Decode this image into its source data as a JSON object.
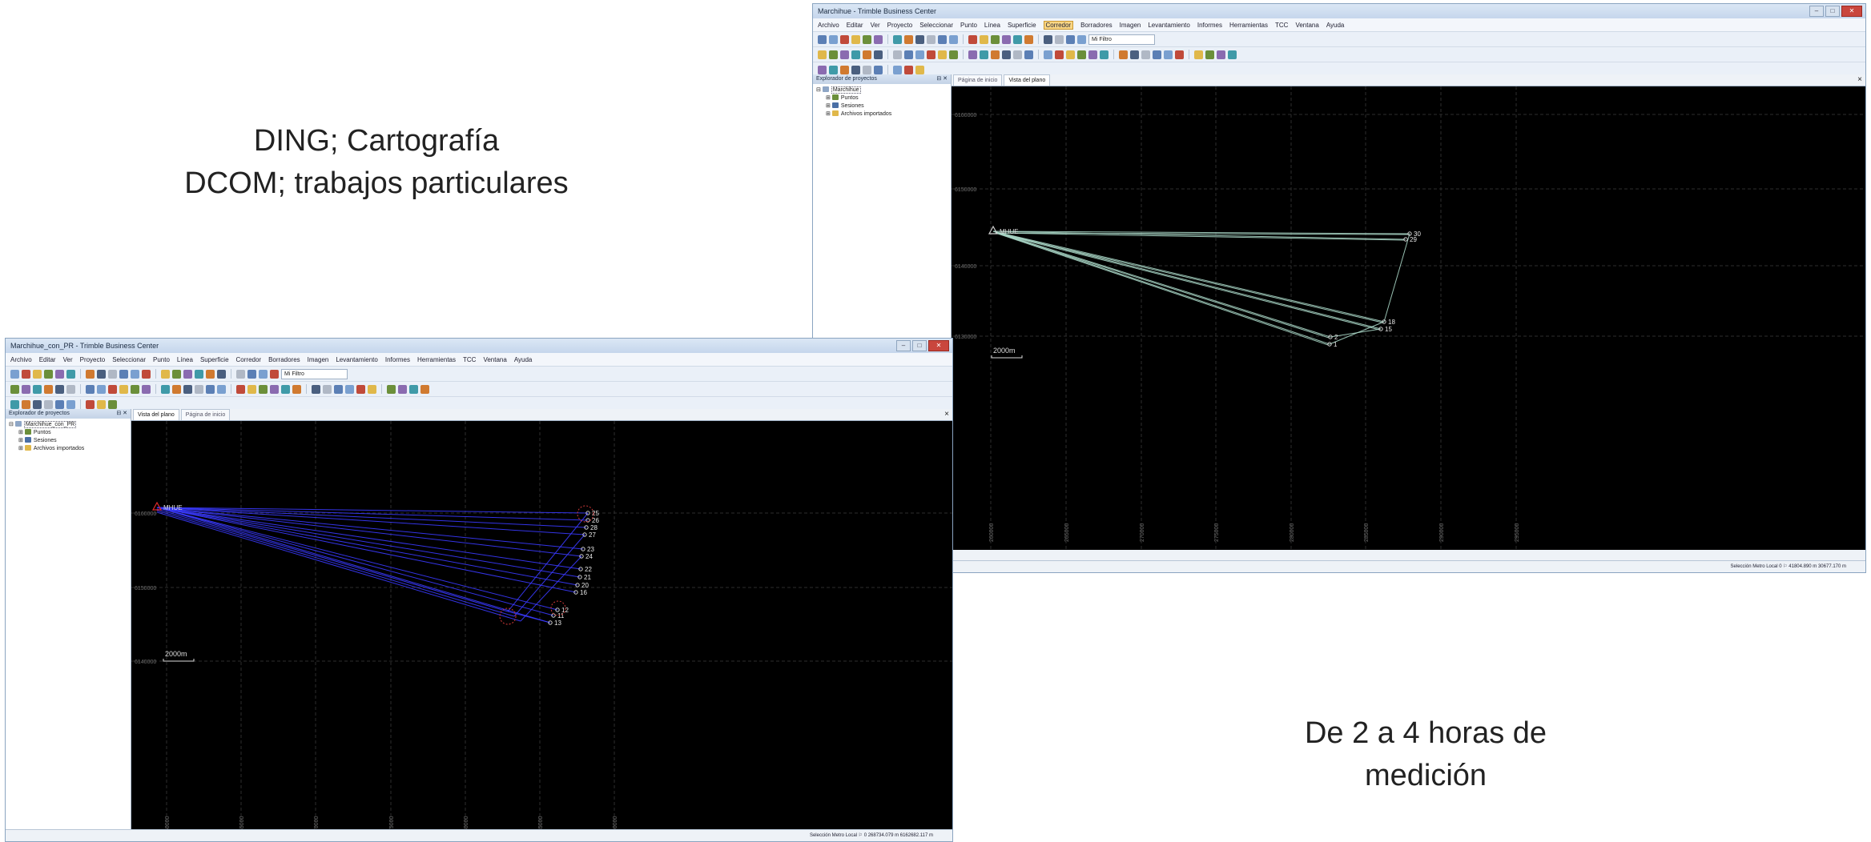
{
  "captions": {
    "left_line1": "DING; Cartografía",
    "left_line2": "DCOM; trabajos particulares",
    "right_line1": "De 2 a 4 horas de",
    "right_line2": "medición"
  },
  "window_top": {
    "title": "Marchihue - Trimble Business Center",
    "menu": [
      "Archivo",
      "Editar",
      "Ver",
      "Proyecto",
      "Seleccionar",
      "Punto",
      "Línea",
      "Superficie",
      "Corredor",
      "Borradores",
      "Imagen",
      "Levantamiento",
      "Informes",
      "Herramientas",
      "TCC",
      "Ventana",
      "Ayuda"
    ],
    "active_menu": "Corredor",
    "filter_value": "Mi Filtro",
    "explorer": {
      "header": "Explorador de proyectos",
      "root": "Marchihue",
      "items": [
        "Puntos",
        "Sesiones",
        "Archivos importados"
      ]
    },
    "tabs": [
      "Página de inicio",
      "Vista del plano"
    ],
    "selected_tab": "Vista del plano",
    "status": "Selección  Metro  Local    0   ⚐   41804.890 m  30677.170 m",
    "plot": {
      "northings": [
        "6160000",
        "6150000",
        "6140000",
        "6130000"
      ],
      "eastings": [
        "260000",
        "265000",
        "270000",
        "275000",
        "280000",
        "285000",
        "290000",
        "295000"
      ],
      "scale_label": "2000m",
      "base_label": "MHUE",
      "points": [
        {
          "label": "30"
        },
        {
          "label": "29"
        },
        {
          "label": "18"
        },
        {
          "label": "15"
        },
        {
          "label": "2"
        },
        {
          "label": "1"
        }
      ]
    }
  },
  "window_bottom": {
    "title": "Marchihue_con_PR - Trimble Business Center",
    "menu": [
      "Archivo",
      "Editar",
      "Ver",
      "Proyecto",
      "Seleccionar",
      "Punto",
      "Línea",
      "Superficie",
      "Corredor",
      "Borradores",
      "Imagen",
      "Levantamiento",
      "Informes",
      "Herramientas",
      "TCC",
      "Ventana",
      "Ayuda"
    ],
    "filter_value": "Mi Filtro",
    "explorer": {
      "header": "Explorador de proyectos",
      "root": "Marchihue_con_PR",
      "items": [
        "Puntos",
        "Sesiones",
        "Archivos importados"
      ]
    },
    "tabs": [
      "Vista del plano",
      "Página de inicio"
    ],
    "selected_tab": "Vista del plano",
    "status": "Selección  Metro  Local  ⚐   0     268734.079 m  6162682.117 m",
    "plot": {
      "northings": [
        "6160000",
        "6150000",
        "6140000"
      ],
      "eastings": [
        "260000",
        "265000",
        "270000",
        "275000",
        "280000",
        "285000",
        "290000"
      ],
      "scale_label": "2000m",
      "base_label": "MHUE",
      "points": [
        {
          "label": "25"
        },
        {
          "label": "26"
        },
        {
          "label": "28"
        },
        {
          "label": "27"
        },
        {
          "label": "23"
        },
        {
          "label": "24"
        },
        {
          "label": "22"
        },
        {
          "label": "21"
        },
        {
          "label": "20"
        },
        {
          "label": "16"
        },
        {
          "label": "12"
        },
        {
          "label": "11"
        },
        {
          "label": "13"
        }
      ]
    }
  }
}
